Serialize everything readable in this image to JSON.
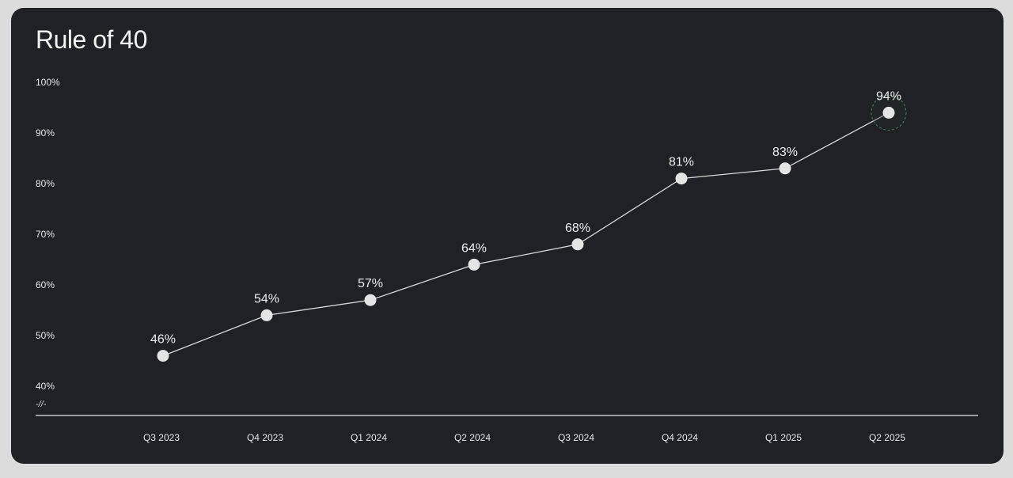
{
  "chart_data": {
    "type": "line",
    "title": "Rule of 40",
    "categories": [
      "Q3 2023",
      "Q4 2023",
      "Q1 2024",
      "Q2 2024",
      "Q3 2024",
      "Q4 2024",
      "Q1 2025",
      "Q2 2025"
    ],
    "series": [
      {
        "values": [
          46,
          54,
          57,
          64,
          68,
          81,
          83,
          94
        ],
        "labels": [
          "46%",
          "54%",
          "57%",
          "64%",
          "68%",
          "81%",
          "83%",
          "94%"
        ]
      }
    ],
    "y_ticks": [
      40,
      50,
      60,
      70,
      80,
      90,
      100
    ],
    "y_tick_labels": [
      "40%",
      "50%",
      "60%",
      "70%",
      "80%",
      "90%",
      "100%"
    ],
    "ylim": [
      40,
      100
    ],
    "axis_break_mark": "-//-",
    "highlighted_point": "Q2 2025",
    "grid": false,
    "xlabel": "",
    "ylabel": "",
    "colors": {
      "background": "#1f2124",
      "line": "#d9d9d9",
      "point": "#e4e4e4",
      "highlight_ring": "#4f7d63"
    }
  }
}
